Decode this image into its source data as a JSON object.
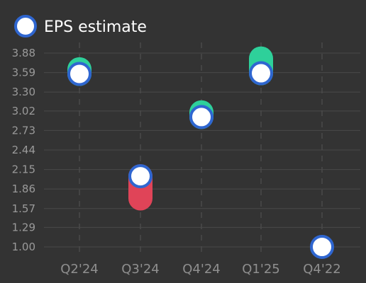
{
  "legend": {
    "label": "EPS estimate"
  },
  "colors": {
    "background": "#333333",
    "grid": "#4a4a4a",
    "beat": "#2ed09a",
    "miss": "#e04458",
    "marker_border": "#2f66d0",
    "marker_fill": "#ffffff"
  },
  "chart_data": {
    "type": "scatter",
    "categories": [
      "Q2'24",
      "Q3'24",
      "Q4'24",
      "Q1'25",
      "Q4'22"
    ],
    "series": [
      {
        "name": "EPS estimate",
        "values": [
          3.57,
          2.05,
          2.93,
          3.58,
          1.0
        ]
      },
      {
        "values": [
          3.64,
          1.72,
          3.0,
          3.8,
          null
        ]
      }
    ],
    "y_ticks": [
      "3.88",
      "3.59",
      "3.30",
      "3.02",
      "2.73",
      "2.44",
      "2.15",
      "1.86",
      "1.57",
      "1.29",
      "1.00"
    ],
    "ylim": [
      1.0,
      3.88
    ],
    "grid": true,
    "legend_position": "top-left"
  }
}
